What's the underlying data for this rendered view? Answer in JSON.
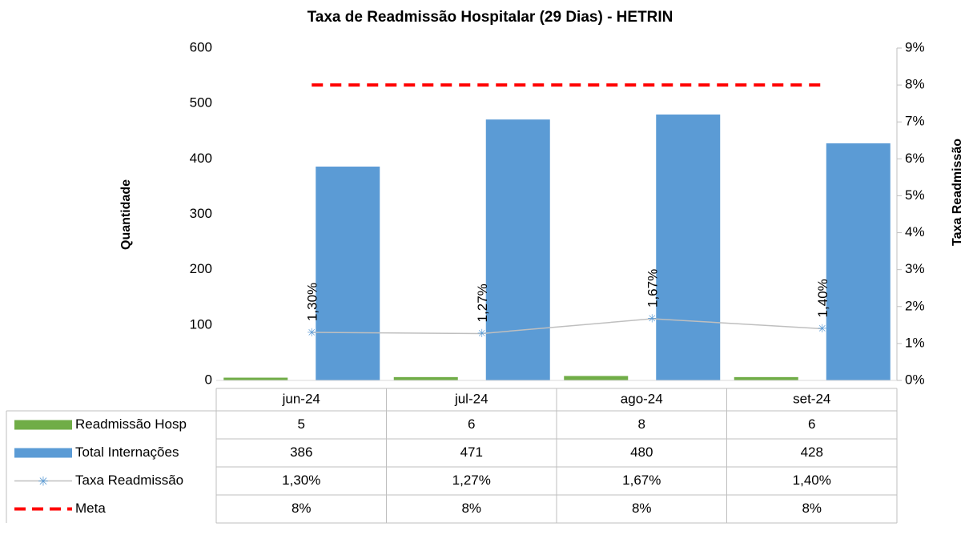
{
  "chart_data": {
    "type": "bar",
    "title": "Taxa de Readmissão Hospitalar (29 Dias) - HETRIN",
    "y_label": "Quantidade",
    "y2_label": "Taxa Readmissão",
    "categories": [
      "jun-24",
      "jul-24",
      "ago-24",
      "set-24"
    ],
    "series": [
      {
        "name": "Readmissão Hosp",
        "color": "#70ad47",
        "type": "bar",
        "values": [
          5,
          6,
          8,
          6
        ]
      },
      {
        "name": "Total Internações",
        "color": "#5b9bd5",
        "type": "bar",
        "values": [
          386,
          471,
          480,
          428
        ]
      },
      {
        "name": "Taxa Readmissão",
        "color": "#bfbfbf",
        "marker_color": "#5b9bd5",
        "type": "line",
        "axis": "y2",
        "values": [
          1.3,
          1.27,
          1.67,
          1.4
        ],
        "value_labels": [
          "1,30%",
          "1,27%",
          "1,67%",
          "1,40%"
        ]
      },
      {
        "name": "Meta",
        "color": "#ff0000",
        "type": "line",
        "dashed": true,
        "axis": "y2",
        "values": [
          8,
          8,
          8,
          8
        ],
        "value_labels": [
          "8%",
          "8%",
          "8%",
          "8%"
        ]
      }
    ],
    "ylim": [
      0,
      600
    ],
    "yticks": [
      0,
      100,
      200,
      300,
      400,
      500,
      600
    ],
    "y2lim": [
      0,
      9
    ],
    "y2ticks": [
      {
        "value": 0,
        "label": "0%"
      },
      {
        "value": 1,
        "label": "1%"
      },
      {
        "value": 2,
        "label": "2%"
      },
      {
        "value": 3,
        "label": "3%"
      },
      {
        "value": 4,
        "label": "4%"
      },
      {
        "value": 5,
        "label": "5%"
      },
      {
        "value": 6,
        "label": "6%"
      },
      {
        "value": 7,
        "label": "7%"
      },
      {
        "value": 8,
        "label": "8%"
      },
      {
        "value": 9,
        "label": "9%"
      }
    ],
    "data_table": true
  }
}
